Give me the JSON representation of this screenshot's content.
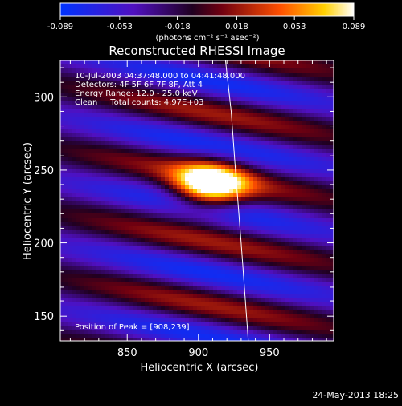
{
  "chart_data": {
    "type": "heatmap",
    "title": "Reconstructed RHESSI Image",
    "xlabel": "Heliocentric X (arcsec)",
    "ylabel": "Heliocentric Y (arcsec)",
    "xlim": [
      803,
      995
    ],
    "ylim": [
      133,
      325
    ],
    "x_ticks": [
      850,
      900,
      950
    ],
    "y_ticks": [
      150,
      200,
      250,
      300
    ],
    "colorbar": {
      "range": [
        -0.089,
        0.089
      ],
      "ticks": [
        "-0.089",
        "-0.053",
        "-0.018",
        "0.018",
        "0.053",
        "0.089"
      ],
      "unit_label": "(photons cm⁻² s⁻¹ asec⁻²)",
      "colormap": "blue-purple-red-yellow-white"
    },
    "annotations": {
      "time_range": "10-Jul-2003 04:37:48.000 to 04:41:48.000",
      "detectors": "Detectors: 4F 5F 6F 7F 8F, Att 4",
      "energy": "Energy Range: 12.0 - 25.0 keV",
      "method": "Clean     Total counts: 4.97E+03",
      "peak": "Position of Peak = [908,239]"
    },
    "peak": {
      "x": 908,
      "y": 239
    },
    "limb_curve": [
      [
        919,
        325
      ],
      [
        923,
        290
      ],
      [
        926,
        250
      ],
      [
        930,
        200
      ],
      [
        933,
        160
      ],
      [
        935,
        133
      ]
    ],
    "image_model": {
      "background": -0.03,
      "wave_amplitude": 0.05,
      "wave_period_y": 44,
      "wave_slope": 0.18,
      "peak_amplitude": 0.13,
      "peak_sigma_x": 18,
      "peak_sigma_y": 11
    }
  },
  "footer": {
    "date": "24-May-2013 18:25"
  }
}
